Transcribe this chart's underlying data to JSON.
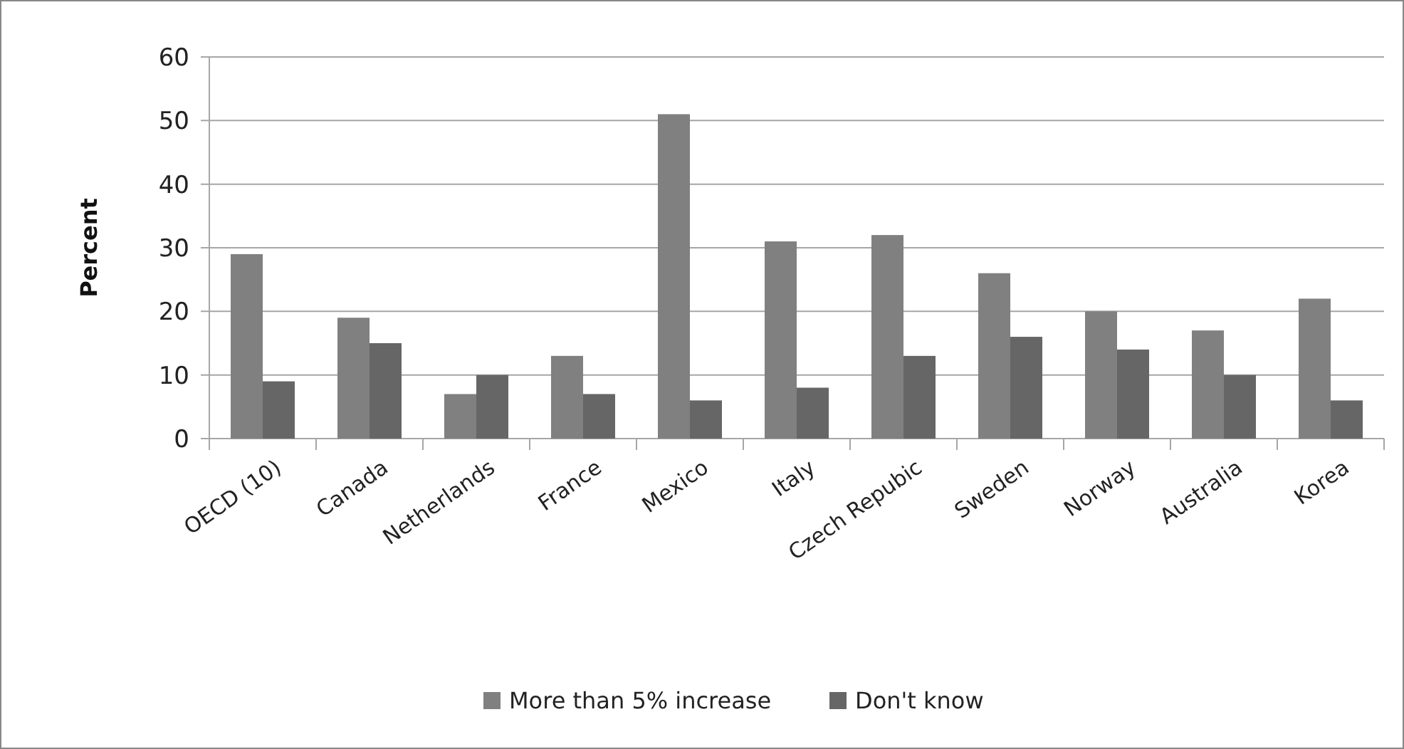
{
  "chart_data": {
    "type": "bar",
    "ylabel": "Percent",
    "categories": [
      "OECD (10)",
      "Canada",
      "Netherlands",
      "France",
      "Mexico",
      "Italy",
      "Czech Repubic",
      "Sweden",
      "Norway",
      "Australia",
      "Korea"
    ],
    "series": [
      {
        "name": "More than 5% increase",
        "color": "#808080",
        "values": [
          29,
          19,
          7,
          13,
          51,
          31,
          32,
          26,
          20,
          17,
          22
        ]
      },
      {
        "name": "Don't know",
        "color": "#666666",
        "values": [
          9,
          15,
          10,
          7,
          6,
          8,
          13,
          16,
          14,
          10,
          6
        ]
      }
    ],
    "ylim": [
      0,
      60
    ],
    "yticks": [
      0,
      10,
      20,
      30,
      40,
      50,
      60
    ],
    "grid": "y",
    "legend": "bottom"
  }
}
